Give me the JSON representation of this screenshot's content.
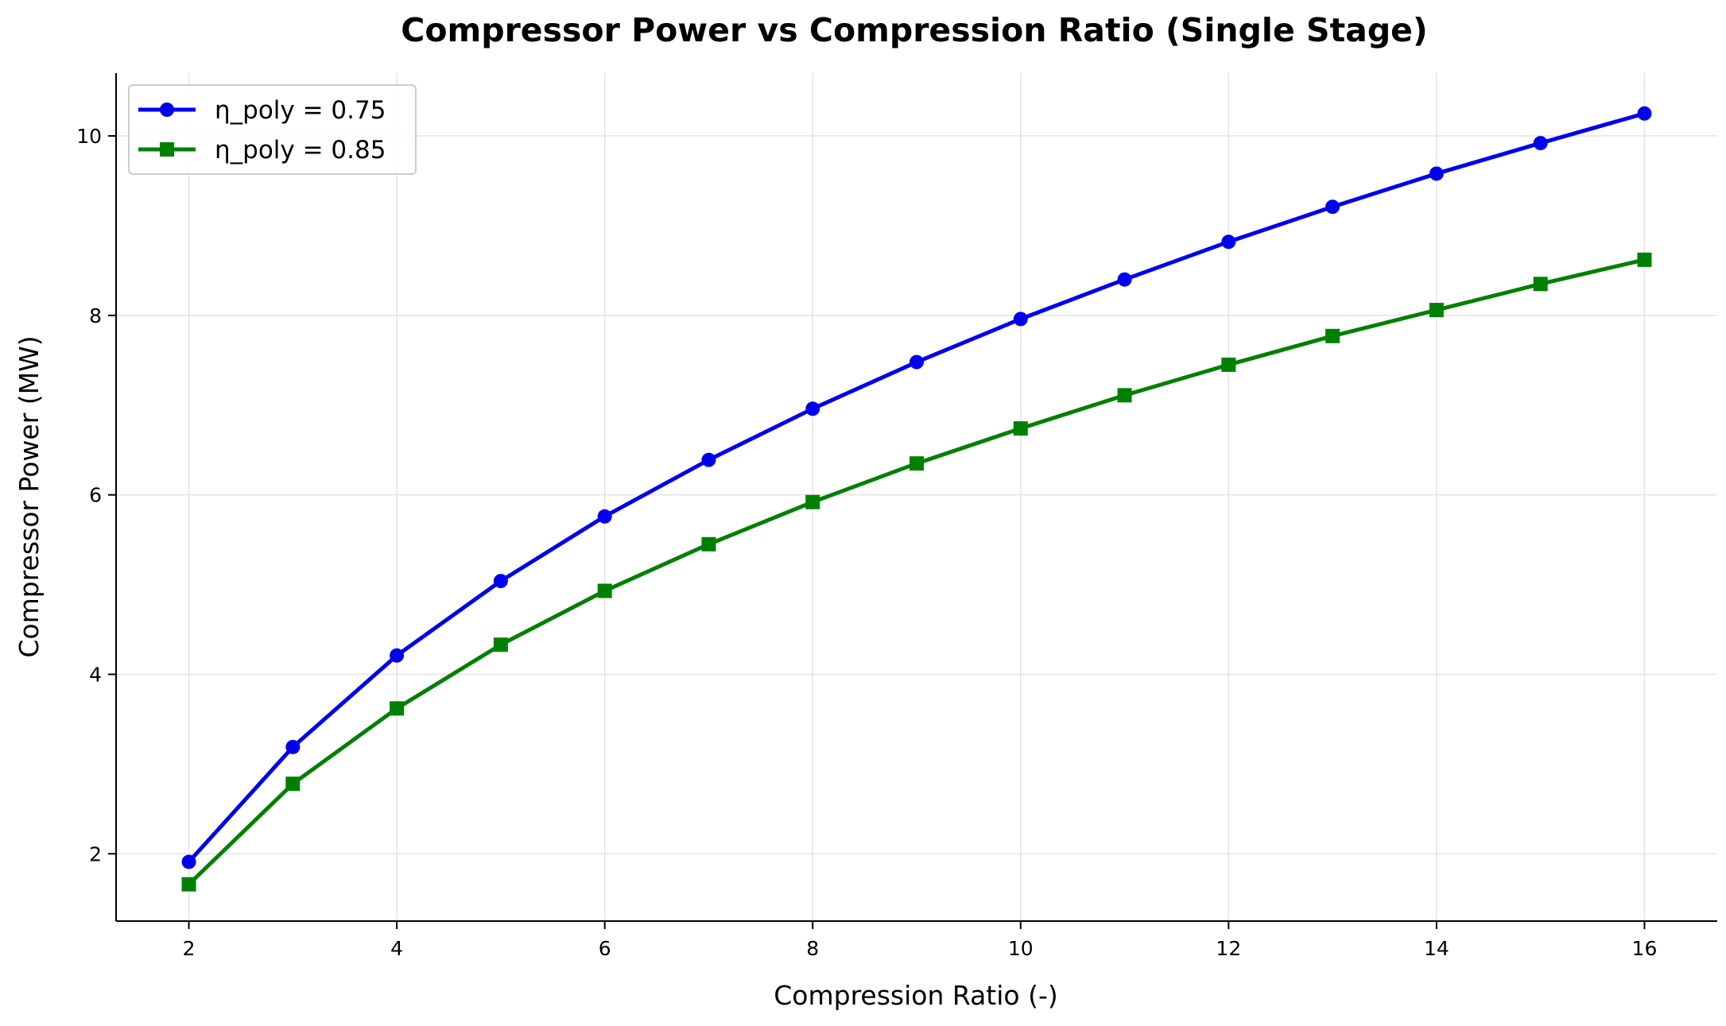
{
  "chart_data": {
    "type": "line",
    "title": "Compressor Power vs Compression Ratio (Single Stage)",
    "xlabel": "Compression Ratio (-)",
    "ylabel": "Compressor Power (MW)",
    "xlim": [
      1.3,
      16.7
    ],
    "ylim": [
      1.25,
      10.7
    ],
    "xticks": [
      2,
      4,
      6,
      8,
      10,
      12,
      14,
      16
    ],
    "yticks": [
      2,
      4,
      6,
      8,
      10
    ],
    "grid": true,
    "legend_position": "top-left",
    "x": [
      2,
      3,
      4,
      5,
      6,
      7,
      8,
      9,
      10,
      11,
      12,
      13,
      14,
      15,
      16
    ],
    "series": [
      {
        "name": "η_poly = 0.75",
        "color": "#0000ee",
        "marker": "circle",
        "values": [
          1.91,
          3.19,
          4.21,
          5.04,
          5.76,
          6.39,
          6.96,
          7.48,
          7.96,
          8.4,
          8.82,
          9.21,
          9.58,
          9.92,
          10.25
        ]
      },
      {
        "name": "η_poly = 0.85",
        "color": "#008000",
        "marker": "square",
        "values": [
          1.66,
          2.78,
          3.62,
          4.33,
          4.93,
          5.45,
          5.92,
          6.35,
          6.74,
          7.11,
          7.45,
          7.77,
          8.06,
          8.35,
          8.62
        ]
      }
    ]
  }
}
